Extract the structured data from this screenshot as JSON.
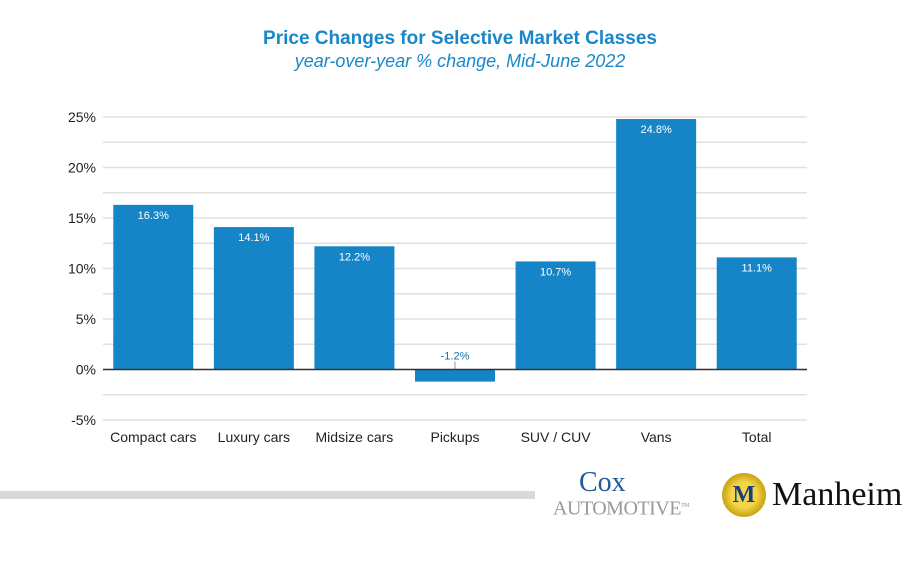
{
  "chart_data": {
    "type": "bar",
    "title": "Price Changes for Selective Market Classes",
    "subtitle": "year-over-year % change, Mid-June 2022",
    "categories": [
      "Compact cars",
      "Luxury cars",
      "Midsize cars",
      "Pickups",
      "SUV / CUV",
      "Vans",
      "Total"
    ],
    "values": [
      16.3,
      14.1,
      12.2,
      -1.2,
      10.7,
      24.8,
      11.1
    ],
    "data_labels": [
      "16.3%",
      "14.1%",
      "12.2%",
      "-1.2%",
      "10.7%",
      "24.8%",
      "11.1%"
    ],
    "ylim": [
      -5,
      25
    ],
    "yticks": [
      -5,
      0,
      5,
      10,
      15,
      20,
      25
    ],
    "ytick_labels": [
      "-5%",
      "0%",
      "5%",
      "10%",
      "15%",
      "20%",
      "25%"
    ],
    "grid": true,
    "bar_color": "#1585c8",
    "xlabel": "",
    "ylabel": ""
  },
  "logos": {
    "cox": "Cox Automotive",
    "manheim": "Manheim"
  }
}
